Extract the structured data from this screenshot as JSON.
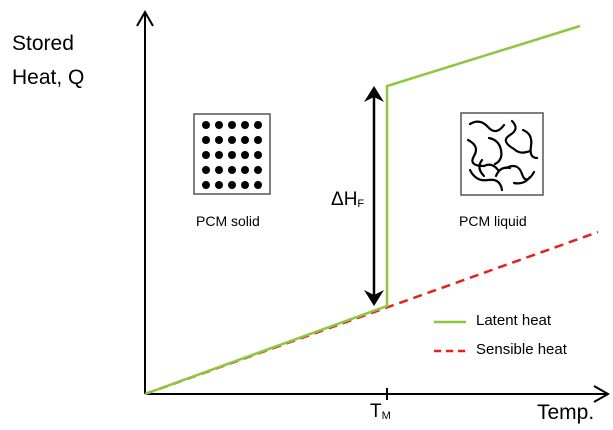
{
  "y_axis_label": {
    "line1": "Stored",
    "line2": "Heat, Q"
  },
  "x_axis_label": "Temp.",
  "melting_point": {
    "base": "T",
    "sub": "M"
  },
  "enthalpy_label": {
    "base": "ΔH",
    "sub": "F"
  },
  "solid_label": "PCM solid",
  "liquid_label": "PCM liquid",
  "legend": [
    {
      "label": "Latent heat",
      "color": "#8dc63f",
      "style": "solid"
    },
    {
      "label": "Sensible heat",
      "color": "#e8201a",
      "style": "dashed"
    }
  ],
  "colors": {
    "latent": "#8dc63f",
    "sensible": "#e8201a",
    "axis": "#000000"
  },
  "icons": {
    "solid": "lattice-dots-icon",
    "liquid": "tangled-chains-icon"
  }
}
